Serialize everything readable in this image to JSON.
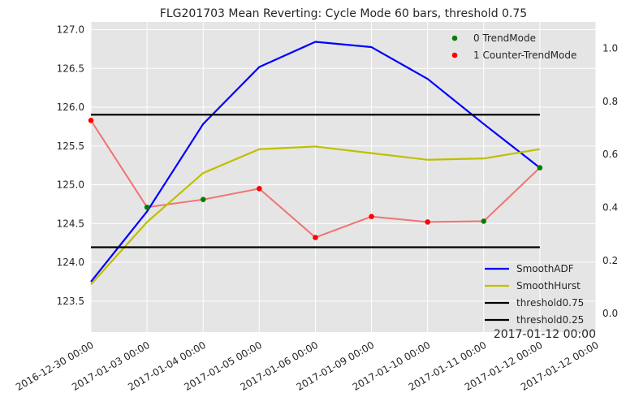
{
  "chart_data": {
    "type": "line",
    "title": "FLG201703 Mean Reverting: Cycle Mode 60 bars, threshold 0.75",
    "x_tick_labels": [
      "2016-12-30 00:00",
      "2017-01-03 00:00",
      "2017-01-04 00:00",
      "2017-01-05 00:00",
      "2017-01-06 00:00",
      "2017-01-09 00:00",
      "2017-01-10 00:00",
      "2017-01-11 00:00",
      "2017-01-12 00:00",
      "2017-01-12 00:00"
    ],
    "x_offset_label": "2017-01-12 00:00",
    "y_left": {
      "ylim": [
        123.1,
        127.1
      ],
      "ticks": [
        123.5,
        124.0,
        124.5,
        125.0,
        125.5,
        126.0,
        126.5,
        127.0
      ],
      "tick_labels": [
        "123.5",
        "124.0",
        "124.5",
        "125.0",
        "125.5",
        "126.0",
        "126.5",
        "127.0"
      ]
    },
    "y_right": {
      "ylim": [
        -0.07,
        1.1
      ],
      "ticks": [
        0.0,
        0.2,
        0.4,
        0.6,
        0.8,
        1.0
      ],
      "tick_labels": [
        "0.0",
        "0.2",
        "0.4",
        "0.6",
        "0.8",
        "1.0"
      ]
    },
    "grid": true,
    "series": [
      {
        "name": "SmoothADF",
        "axis": "right",
        "color": "#0000ff",
        "x": [
          0,
          1,
          2,
          3,
          4,
          5,
          6,
          7,
          8
        ],
        "values": [
          0.12,
          0.385,
          0.715,
          0.93,
          1.025,
          1.005,
          0.885,
          0.715,
          0.55
        ]
      },
      {
        "name": "SmoothHurst",
        "axis": "right",
        "color": "#bfbf00",
        "x": [
          0,
          1,
          2,
          3,
          4,
          5,
          6,
          7,
          8
        ],
        "values": [
          0.11,
          0.345,
          0.53,
          0.62,
          0.63,
          0.605,
          0.58,
          0.585,
          0.62
        ]
      },
      {
        "name": "threshold0.75",
        "axis": "right",
        "color": "#000000",
        "x": [
          0,
          8
        ],
        "values": [
          0.75,
          0.75
        ]
      },
      {
        "name": "threshold0.25",
        "axis": "right",
        "color": "#000000",
        "x": [
          0,
          8
        ],
        "values": [
          0.25,
          0.25
        ]
      }
    ],
    "price_line": {
      "axis": "left",
      "color": "#f07470",
      "x": [
        0,
        1,
        2,
        3,
        4,
        5,
        6,
        7,
        8
      ],
      "values": [
        125.83,
        124.71,
        124.81,
        124.95,
        124.32,
        124.59,
        124.52,
        124.53,
        125.22
      ]
    },
    "scatter_series": [
      {
        "name": "0 TrendMode",
        "axis": "left",
        "color": "#008000",
        "x": [
          1,
          2,
          7,
          8
        ],
        "values": [
          124.71,
          124.81,
          124.53,
          125.22
        ]
      },
      {
        "name": "1 Counter-TrendMode",
        "axis": "left",
        "color": "#ff0000",
        "x": [
          0,
          3,
          4,
          5,
          6
        ],
        "values": [
          125.83,
          124.95,
          124.32,
          124.59,
          124.52
        ]
      }
    ],
    "legend_top": {
      "placement": "top-right",
      "entries": [
        "0 TrendMode",
        "1 Counter-TrendMode"
      ]
    },
    "legend_bottom": {
      "placement": "bottom-right",
      "entries": [
        "SmoothADF",
        "SmoothHurst",
        "threshold0.75",
        "threshold0.25"
      ]
    }
  }
}
